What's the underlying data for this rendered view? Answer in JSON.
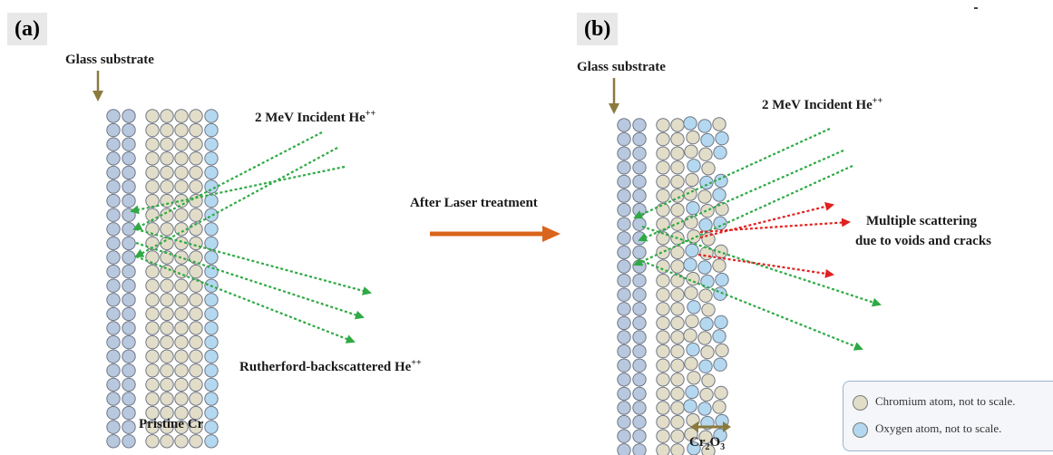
{
  "panel_a": {
    "label": "(a)",
    "substrate_label": "Glass substrate",
    "incident_label": "2 MeV Incident He",
    "incident_sup": "++",
    "backscatter_label": "Rutherford-backscattered He",
    "backscatter_sup": "++",
    "film_label": "Pristine Cr"
  },
  "center": {
    "arrow_label": "After Laser treatment"
  },
  "panel_b": {
    "label": "(b)",
    "substrate_label": "Glass substrate",
    "incident_label": "2 MeV Incident He",
    "incident_sup": "++",
    "scatter_line1": "Multiple scattering",
    "scatter_line2": "due to voids and cracks",
    "oxide_base": "Cr",
    "oxide_sub1": "2",
    "oxide_mid": "O",
    "oxide_sub2": "3"
  },
  "legend": {
    "chromium": "Chromium atom, not to scale.",
    "oxygen": "Oxygen atom, not to scale."
  },
  "colors": {
    "glass_atom": "#b8c8de",
    "chromium_atom": "#e2ddc8",
    "oxygen_atom": "#b4d8ef",
    "incident_arrow": "#2eaa44",
    "scatter_arrow": "#e02020",
    "process_arrow": "#d9651c",
    "marker_arrow": "#8b7a3e"
  }
}
